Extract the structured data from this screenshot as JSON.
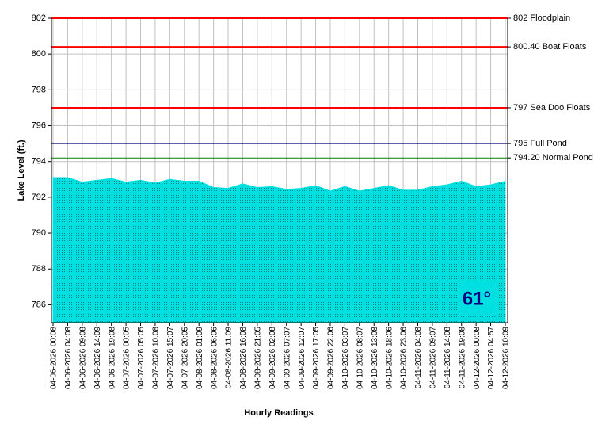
{
  "chart_data": {
    "type": "area",
    "y_label": "Lake Level (ft.)",
    "x_label": "Hourly Readings",
    "categories": [
      "04-06-2026 00:08",
      "04-06-2026 04:08",
      "04-06-2026 09:08",
      "04-06-2026 14:09",
      "04-06-2026 19:08",
      "04-07-2026 00:05",
      "04-07-2026 05:05",
      "04-07-2026 10:08",
      "04-07-2026 15:07",
      "04-07-2026 20:05",
      "04-08-2026 01:09",
      "04-08-2026 06:06",
      "04-08-2026 11:09",
      "04-08-2026 16:08",
      "04-08-2026 21:05",
      "04-09-2026 02:08",
      "04-09-2026 07:07",
      "04-09-2026 12:07",
      "04-09-2026 17:05",
      "04-09-2026 22:06",
      "04-10-2026 03:07",
      "04-10-2026 08:07",
      "04-10-2026 13:08",
      "04-10-2026 18:06",
      "04-10-2026 23:06",
      "04-11-2026 04:08",
      "04-11-2026 09:07",
      "04-11-2026 14:08",
      "04-11-2026 19:08",
      "04-12-2026 00:08",
      "04-12-2026 04:57",
      "04-12-2026 10:09"
    ],
    "values": [
      793.1,
      793.1,
      792.85,
      792.95,
      793.05,
      792.85,
      792.95,
      792.8,
      793.0,
      792.9,
      792.9,
      792.55,
      792.5,
      792.75,
      792.55,
      792.6,
      792.45,
      792.5,
      792.65,
      792.35,
      792.6,
      792.35,
      792.5,
      792.65,
      792.4,
      792.4,
      792.6,
      792.7,
      792.9,
      792.6,
      792.7,
      792.9
    ],
    "color": "#00e0e0",
    "ylim": [
      785,
      802
    ],
    "yticks": [
      786,
      788,
      790,
      792,
      794,
      796,
      798,
      800,
      802
    ],
    "grid": true,
    "reference_lines": [
      {
        "value": 802,
        "label": "802 Floodplain",
        "color": "#ff0000"
      },
      {
        "value": 800.4,
        "label": "800.40 Boat Floats",
        "color": "#ff0000"
      },
      {
        "value": 797,
        "label": "797 Sea Doo Floats",
        "color": "#ff0000"
      },
      {
        "value": 795,
        "label": "795 Full Pond",
        "color": "#000080"
      },
      {
        "value": 794.2,
        "label": "794.20 Normal Pond",
        "color": "#008000"
      }
    ],
    "temperature": "61°"
  }
}
